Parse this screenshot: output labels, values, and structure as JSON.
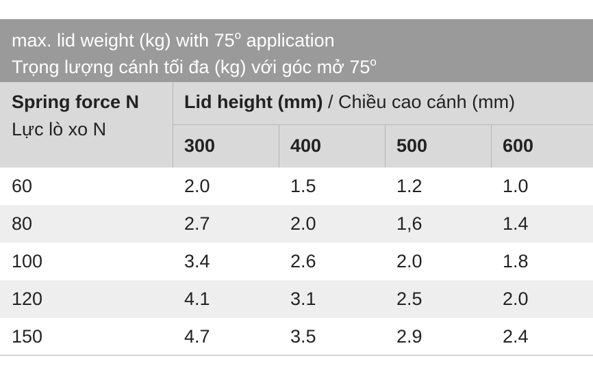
{
  "title": {
    "line1": "max. lid weight (kg) with 75",
    "line1_sup": "o",
    "line1_end": " application",
    "line2": "Trọng lượng cánh tối đa (kg) với góc mở 75",
    "line2_sup": "o"
  },
  "header": {
    "spring_label": "Spring force N",
    "spring_label_vi": "Lực lò xo N",
    "lid_height_bold": "Lid height (mm)",
    "lid_height_rest": " / Chiều cao cánh (mm)",
    "columns": [
      "300",
      "400",
      "500",
      "600"
    ]
  },
  "rows": [
    {
      "force": "60",
      "values": [
        "2.0",
        "1.5",
        "1.2",
        "1.0"
      ]
    },
    {
      "force": "80",
      "values": [
        "2.7",
        "2.0",
        "1,6",
        "1.4"
      ]
    },
    {
      "force": "100",
      "values": [
        "3.4",
        "2.6",
        "2.0",
        "1.8"
      ]
    },
    {
      "force": "120",
      "values": [
        "4.1",
        "3.1",
        "2.5",
        "2.0"
      ]
    },
    {
      "force": "150",
      "values": [
        "4.7",
        "3.5",
        "2.9",
        "2.4"
      ]
    }
  ],
  "colors": {
    "title_bg": "#9a9a9a",
    "header_bg": "#d9d9d9",
    "alt_row_bg": "#eeeeee",
    "text": "#222222"
  }
}
